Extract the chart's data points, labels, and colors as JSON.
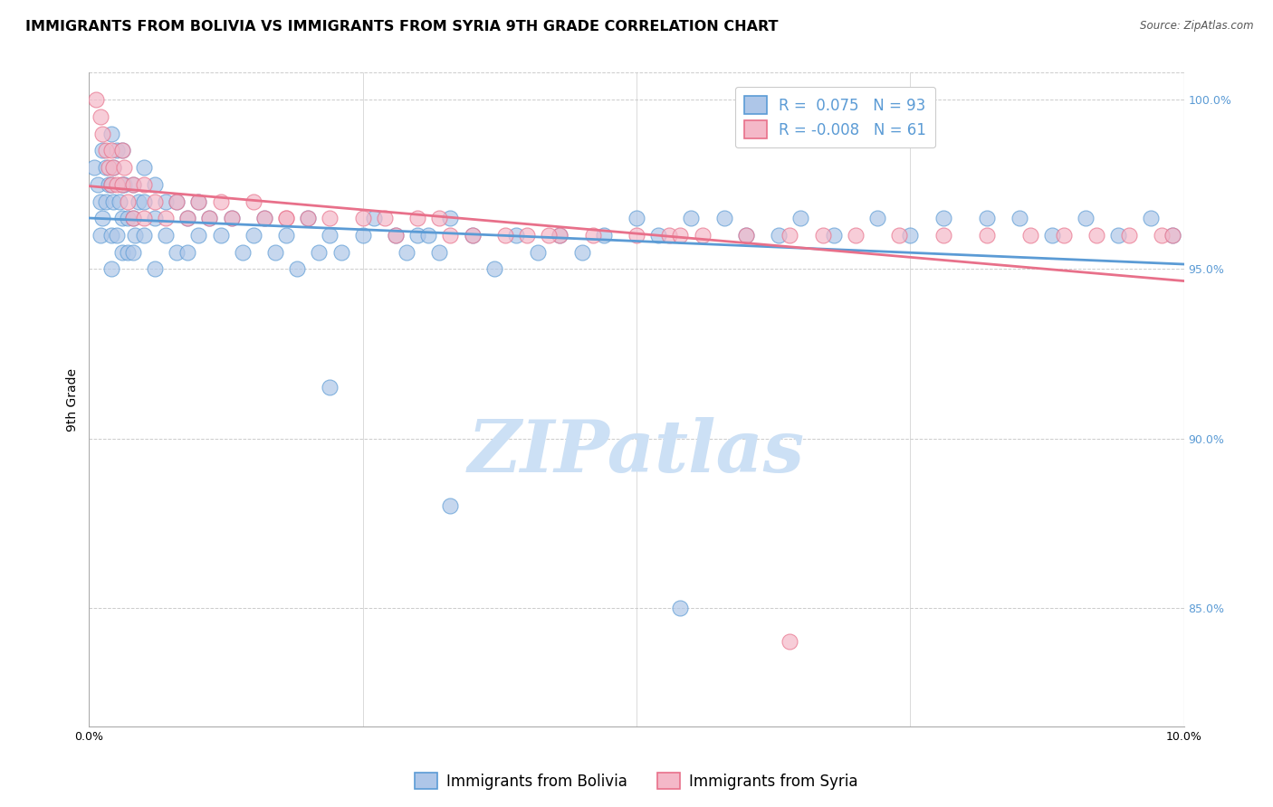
{
  "title": "IMMIGRANTS FROM BOLIVIA VS IMMIGRANTS FROM SYRIA 9TH GRADE CORRELATION CHART",
  "source": "Source: ZipAtlas.com",
  "ylabel": "9th Grade",
  "xlim": [
    0.0,
    0.1
  ],
  "ylim": [
    0.815,
    1.008
  ],
  "yticks": [
    0.85,
    0.9,
    0.95,
    1.0
  ],
  "ytick_labels": [
    "85.0%",
    "90.0%",
    "95.0%",
    "100.0%"
  ],
  "xticks": [
    0.0,
    0.025,
    0.05,
    0.075,
    0.1
  ],
  "xtick_labels": [
    "0.0%",
    "",
    "",
    "",
    "10.0%"
  ],
  "bolivia_color": "#aec6e8",
  "syria_color": "#f4b8c8",
  "bolivia_edge_color": "#5b9bd5",
  "syria_edge_color": "#e8708a",
  "bolivia_line_color": "#5b9bd5",
  "syria_line_color": "#e8708a",
  "R_bolivia": 0.075,
  "N_bolivia": 93,
  "R_syria": -0.008,
  "N_syria": 61,
  "bolivia_points_x": [
    0.0005,
    0.0008,
    0.001,
    0.001,
    0.0012,
    0.0012,
    0.0015,
    0.0015,
    0.0018,
    0.002,
    0.002,
    0.002,
    0.002,
    0.0022,
    0.0022,
    0.0025,
    0.0025,
    0.0028,
    0.003,
    0.003,
    0.003,
    0.003,
    0.0032,
    0.0035,
    0.0035,
    0.004,
    0.004,
    0.004,
    0.0042,
    0.0045,
    0.005,
    0.005,
    0.005,
    0.006,
    0.006,
    0.006,
    0.007,
    0.007,
    0.008,
    0.008,
    0.009,
    0.009,
    0.01,
    0.01,
    0.011,
    0.012,
    0.013,
    0.014,
    0.015,
    0.016,
    0.017,
    0.018,
    0.019,
    0.02,
    0.021,
    0.022,
    0.023,
    0.025,
    0.026,
    0.028,
    0.029,
    0.03,
    0.031,
    0.032,
    0.033,
    0.035,
    0.037,
    0.039,
    0.041,
    0.043,
    0.045,
    0.047,
    0.05,
    0.052,
    0.055,
    0.058,
    0.06,
    0.063,
    0.065,
    0.068,
    0.072,
    0.075,
    0.078,
    0.082,
    0.085,
    0.088,
    0.091,
    0.094,
    0.097,
    0.099,
    0.054,
    0.033,
    0.022
  ],
  "bolivia_points_y": [
    0.98,
    0.975,
    0.97,
    0.96,
    0.985,
    0.965,
    0.98,
    0.97,
    0.975,
    0.99,
    0.975,
    0.96,
    0.95,
    0.98,
    0.97,
    0.985,
    0.96,
    0.97,
    0.985,
    0.975,
    0.965,
    0.955,
    0.975,
    0.965,
    0.955,
    0.975,
    0.965,
    0.955,
    0.96,
    0.97,
    0.98,
    0.97,
    0.96,
    0.975,
    0.965,
    0.95,
    0.97,
    0.96,
    0.97,
    0.955,
    0.965,
    0.955,
    0.97,
    0.96,
    0.965,
    0.96,
    0.965,
    0.955,
    0.96,
    0.965,
    0.955,
    0.96,
    0.95,
    0.965,
    0.955,
    0.96,
    0.955,
    0.96,
    0.965,
    0.96,
    0.955,
    0.96,
    0.96,
    0.955,
    0.965,
    0.96,
    0.95,
    0.96,
    0.955,
    0.96,
    0.955,
    0.96,
    0.965,
    0.96,
    0.965,
    0.965,
    0.96,
    0.96,
    0.965,
    0.96,
    0.965,
    0.96,
    0.965,
    0.965,
    0.965,
    0.96,
    0.965,
    0.96,
    0.965,
    0.96,
    0.85,
    0.88,
    0.915
  ],
  "syria_points_x": [
    0.0006,
    0.001,
    0.0012,
    0.0015,
    0.0018,
    0.002,
    0.002,
    0.0022,
    0.0025,
    0.003,
    0.003,
    0.0032,
    0.0035,
    0.004,
    0.004,
    0.005,
    0.005,
    0.006,
    0.007,
    0.008,
    0.009,
    0.01,
    0.011,
    0.012,
    0.013,
    0.015,
    0.016,
    0.018,
    0.02,
    0.022,
    0.025,
    0.027,
    0.03,
    0.032,
    0.035,
    0.038,
    0.04,
    0.043,
    0.046,
    0.05,
    0.053,
    0.056,
    0.06,
    0.064,
    0.067,
    0.07,
    0.074,
    0.078,
    0.082,
    0.086,
    0.089,
    0.092,
    0.095,
    0.098,
    0.099,
    0.054,
    0.033,
    0.018,
    0.028,
    0.042,
    0.064
  ],
  "syria_points_y": [
    1.0,
    0.995,
    0.99,
    0.985,
    0.98,
    0.985,
    0.975,
    0.98,
    0.975,
    0.985,
    0.975,
    0.98,
    0.97,
    0.975,
    0.965,
    0.975,
    0.965,
    0.97,
    0.965,
    0.97,
    0.965,
    0.97,
    0.965,
    0.97,
    0.965,
    0.97,
    0.965,
    0.965,
    0.965,
    0.965,
    0.965,
    0.965,
    0.965,
    0.965,
    0.96,
    0.96,
    0.96,
    0.96,
    0.96,
    0.96,
    0.96,
    0.96,
    0.96,
    0.96,
    0.96,
    0.96,
    0.96,
    0.96,
    0.96,
    0.96,
    0.96,
    0.96,
    0.96,
    0.96,
    0.96,
    0.96,
    0.96,
    0.965,
    0.96,
    0.96,
    0.84
  ],
  "watermark": "ZIPatlas",
  "watermark_color": "#cce0f5",
  "background_color": "#ffffff",
  "grid_color": "#cccccc",
  "title_fontsize": 11.5,
  "axis_label_fontsize": 10,
  "tick_fontsize": 9,
  "legend_fontsize": 12
}
